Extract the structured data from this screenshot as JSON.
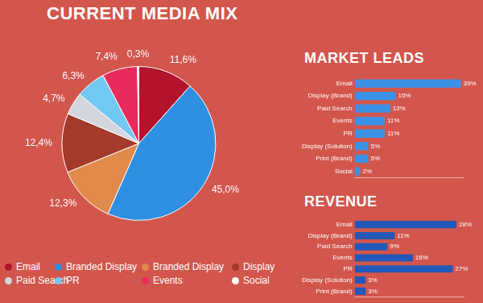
{
  "chart_data": [
    {
      "type": "pie",
      "title": "CURRENT MEDIA MIX",
      "categories": [
        "Email",
        "Branded Display",
        "Branded Display",
        "Display",
        "Paid Search",
        "PR",
        "Events",
        "Social"
      ],
      "values": [
        11.6,
        45.0,
        12.3,
        12.4,
        4.7,
        6.3,
        7.4,
        0.3
      ],
      "value_labels": [
        "11,6%",
        "45,0%",
        "12,3%",
        "12,4%",
        "4,7%",
        "6,3%",
        "7,4%",
        "0,3%"
      ],
      "colors": [
        "#b3142c",
        "#2f8fe2",
        "#e08a4c",
        "#a43a2a",
        "#d4d6de",
        "#72c8f2",
        "#e82a5c",
        "#ffffff"
      ],
      "data_labels": true,
      "legend": "bottom"
    },
    {
      "type": "bar",
      "title": "MARKET LEADS",
      "orientation": "horizontal",
      "categories": [
        "Email",
        "Display (Brand)",
        "Paid Search",
        "Events",
        "PR",
        "Display (Solution)",
        "Print (Brand)",
        "Social"
      ],
      "values": [
        39,
        15,
        13,
        11,
        11,
        5,
        5,
        2
      ],
      "value_labels": [
        "39%",
        "15%",
        "13%",
        "11%",
        "11%",
        "5%",
        "5%",
        "2%"
      ],
      "color": "#3a92e6",
      "xlim": [
        0,
        40
      ],
      "grid": false,
      "data_labels": true,
      "tick_labels": "y"
    },
    {
      "type": "bar",
      "title": "REVENUE",
      "orientation": "horizontal",
      "categories": [
        "Email",
        "Display (Brand)",
        "Paid Search",
        "Events",
        "PR",
        "Display (Solution)",
        "Print (Brand)"
      ],
      "values": [
        28,
        11,
        9,
        16,
        27,
        3,
        3
      ],
      "value_labels": [
        "28%",
        "11%",
        "9%",
        "16%",
        "27%",
        "3%",
        "3%"
      ],
      "color": "#2458b8",
      "xlim": [
        0,
        30
      ],
      "grid": false,
      "data_labels": true,
      "tick_labels": "y"
    }
  ]
}
